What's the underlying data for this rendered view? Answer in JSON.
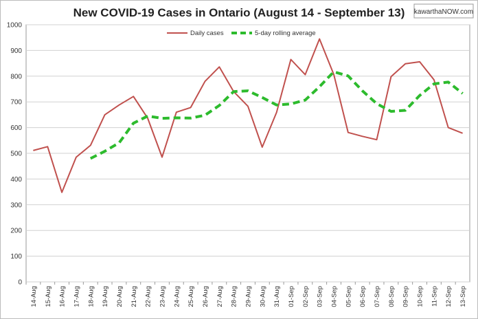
{
  "chart_data": {
    "type": "line",
    "title": "New COVID-19 Cases in Ontario (August 14 - September 13)",
    "logo": "kawarthaNOW.com",
    "categories": [
      "14-Aug",
      "15-Aug",
      "16-Aug",
      "17-Aug",
      "18-Aug",
      "19-Aug",
      "20-Aug",
      "21-Aug",
      "22-Aug",
      "23-Aug",
      "24-Aug",
      "25-Aug",
      "26-Aug",
      "27-Aug",
      "28-Aug",
      "29-Aug",
      "30-Aug",
      "31-Aug",
      "01-Sep",
      "02-Sep",
      "03-Sep",
      "04-Sep",
      "05-Sep",
      "06-Sep",
      "07-Sep",
      "08-Sep",
      "09-Sep",
      "10-Sep",
      "11-Sep",
      "12-Sep",
      "13-Sep"
    ],
    "series": [
      {
        "name": "Daily cases",
        "color": "#c0504d",
        "dashed": false,
        "values": [
          511,
          526,
          348,
          485,
          531,
          650,
          688,
          721,
          636,
          485,
          660,
          678,
          780,
          836,
          740,
          683,
          524,
          659,
          865,
          806,
          945,
          807,
          581,
          566,
          553,
          798,
          848,
          856,
          786,
          600,
          578
        ]
      },
      {
        "name": "5-day rolling average",
        "color": "#2dbb2d",
        "dashed": true,
        "values": [
          null,
          null,
          null,
          null,
          480,
          508,
          541,
          617,
          645,
          636,
          638,
          637,
          648,
          686,
          740,
          743,
          717,
          688,
          692,
          707,
          759,
          817,
          801,
          743,
          693,
          663,
          667,
          725,
          770,
          777,
          733
        ]
      }
    ],
    "ylim": [
      0,
      1000
    ],
    "yticks": [
      0,
      100,
      200,
      300,
      400,
      500,
      600,
      700,
      800,
      900,
      1000
    ],
    "grid": true,
    "legend": "top"
  }
}
